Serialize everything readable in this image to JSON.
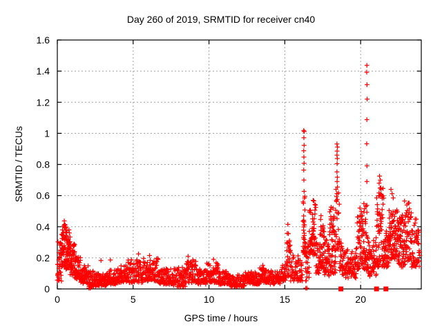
{
  "chart_data": {
    "type": "scatter",
    "title": "Day 260 of 2019, SRMTID for receiver cn40",
    "xlabel": "GPS time / hours",
    "ylabel": "SRMTID / TECUs",
    "xlim": [
      0,
      24
    ],
    "ylim": [
      0,
      1.6
    ],
    "xticks": [
      0,
      5,
      10,
      15,
      20
    ],
    "xtick_labels": [
      "0",
      "5",
      "10",
      "15",
      "20"
    ],
    "yticks": [
      0,
      0.2,
      0.4,
      0.6,
      0.8,
      1,
      1.2,
      1.4,
      1.6
    ],
    "ytick_labels": [
      "0",
      "0.2",
      "0.4",
      "0.6",
      "0.8",
      "1",
      "1.2",
      "1.4",
      "1.6"
    ],
    "grid": {
      "show": true,
      "color": "#9e9e9e",
      "dash": "2,3"
    },
    "legend": "none",
    "background": "#ffffff",
    "border_color": "#000000",
    "seed": 7,
    "series": [
      {
        "name": "srmtid-scatter",
        "marker": "plus",
        "color": "#ff0000",
        "band_segments_format": [
          "hour_start",
          "hour_end",
          "y_low",
          "y_high",
          "n_points"
        ],
        "band_segments": [
          [
            0.0,
            0.28,
            0.05,
            0.31,
            34
          ],
          [
            0.28,
            0.62,
            0.12,
            0.43,
            60
          ],
          [
            0.62,
            0.85,
            0.13,
            0.38,
            45
          ],
          [
            0.85,
            1.15,
            0.09,
            0.3,
            45
          ],
          [
            1.15,
            1.55,
            0.06,
            0.21,
            48
          ],
          [
            1.55,
            2.05,
            0.035,
            0.15,
            52
          ],
          [
            2.05,
            2.55,
            0.01,
            0.115,
            46
          ],
          [
            2.55,
            3.25,
            0.02,
            0.1,
            62
          ],
          [
            3.25,
            4.05,
            0.03,
            0.13,
            68
          ],
          [
            4.05,
            4.65,
            0.04,
            0.15,
            52
          ],
          [
            4.65,
            5.65,
            0.04,
            0.19,
            85
          ],
          [
            5.65,
            6.65,
            0.05,
            0.2,
            85
          ],
          [
            6.65,
            7.65,
            0.03,
            0.13,
            78
          ],
          [
            7.65,
            8.45,
            0.015,
            0.14,
            66
          ],
          [
            8.45,
            9.15,
            0.04,
            0.2,
            62
          ],
          [
            9.15,
            9.85,
            0.03,
            0.13,
            58
          ],
          [
            9.85,
            10.65,
            0.04,
            0.17,
            68
          ],
          [
            10.65,
            11.35,
            0.03,
            0.115,
            56
          ],
          [
            11.35,
            12.35,
            0.015,
            0.09,
            72
          ],
          [
            12.35,
            13.35,
            0.03,
            0.11,
            72
          ],
          [
            13.35,
            13.95,
            0.04,
            0.14,
            48
          ],
          [
            13.95,
            14.75,
            0.03,
            0.12,
            56
          ],
          [
            14.75,
            15.12,
            0.05,
            0.16,
            30
          ],
          [
            15.12,
            15.38,
            0.08,
            0.37,
            26
          ],
          [
            15.38,
            16.18,
            0.05,
            0.22,
            58
          ],
          [
            16.2,
            16.34,
            0.22,
            0.6,
            30
          ],
          [
            16.34,
            16.62,
            0.05,
            0.3,
            26
          ],
          [
            16.62,
            17.05,
            0.22,
            0.57,
            56
          ],
          [
            17.05,
            17.32,
            0.1,
            0.3,
            26
          ],
          [
            17.32,
            17.62,
            0.13,
            0.5,
            42
          ],
          [
            17.62,
            17.95,
            0.08,
            0.32,
            36
          ],
          [
            17.95,
            18.35,
            0.1,
            0.54,
            56
          ],
          [
            18.35,
            18.62,
            0.25,
            0.66,
            26
          ],
          [
            18.62,
            18.88,
            0.08,
            0.3,
            26
          ],
          [
            18.88,
            19.75,
            0.07,
            0.26,
            72
          ],
          [
            19.75,
            20.12,
            0.12,
            0.5,
            44
          ],
          [
            20.12,
            20.48,
            0.12,
            0.55,
            52
          ],
          [
            20.48,
            21.05,
            0.08,
            0.33,
            56
          ],
          [
            21.05,
            21.55,
            0.14,
            0.66,
            72
          ],
          [
            21.55,
            21.88,
            0.14,
            0.4,
            42
          ],
          [
            21.88,
            22.45,
            0.18,
            0.52,
            82
          ],
          [
            22.45,
            22.95,
            0.14,
            0.48,
            64
          ],
          [
            22.95,
            23.35,
            0.18,
            0.56,
            46
          ],
          [
            23.35,
            23.9,
            0.14,
            0.46,
            58
          ]
        ],
        "peak_points": [
          [
            0.46,
            0.437
          ],
          [
            0.44,
            0.408
          ],
          [
            0.49,
            0.395
          ],
          [
            2.88,
            0.183
          ],
          [
            3.5,
            0.186
          ],
          [
            5.35,
            0.225
          ],
          [
            6.08,
            0.215
          ],
          [
            8.62,
            0.21
          ],
          [
            10.3,
            0.19
          ],
          [
            13.55,
            0.152
          ],
          [
            15.2,
            0.415
          ],
          [
            15.24,
            0.355
          ],
          [
            2.08,
            0.005
          ],
          [
            2.17,
            0.005
          ],
          [
            16.38,
            0.005
          ],
          [
            16.46,
            0.005
          ],
          [
            16.25,
            1.018
          ],
          [
            16.28,
            1.012
          ],
          [
            16.26,
            0.972
          ],
          [
            16.27,
            0.923
          ],
          [
            16.25,
            0.888
          ],
          [
            16.26,
            0.848
          ],
          [
            16.27,
            0.808
          ],
          [
            16.25,
            0.764
          ],
          [
            16.26,
            0.7
          ],
          [
            16.27,
            0.627
          ],
          [
            18.44,
            0.932
          ],
          [
            18.47,
            0.912
          ],
          [
            18.45,
            0.886
          ],
          [
            18.44,
            0.86
          ],
          [
            18.46,
            0.838
          ],
          [
            18.45,
            0.805
          ],
          [
            18.44,
            0.752
          ],
          [
            18.46,
            0.718
          ],
          [
            18.45,
            0.69
          ],
          [
            18.47,
            0.655
          ],
          [
            18.44,
            0.612
          ],
          [
            18.46,
            0.575
          ],
          [
            19.95,
            0.52
          ],
          [
            20.41,
            1.437
          ],
          [
            20.4,
            1.393
          ],
          [
            20.42,
            1.313
          ],
          [
            20.43,
            1.22
          ],
          [
            20.41,
            1.088
          ],
          [
            20.4,
            0.933
          ],
          [
            20.42,
            0.791
          ],
          [
            20.41,
            0.69
          ],
          [
            21.25,
            0.725
          ],
          [
            21.3,
            0.7
          ],
          [
            21.22,
            0.68
          ],
          [
            21.28,
            0.648
          ],
          [
            22.0,
            0.64
          ],
          [
            22.08,
            0.612
          ],
          [
            22.15,
            0.585
          ],
          [
            22.9,
            0.565
          ],
          [
            23.05,
            0.54
          ]
        ]
      },
      {
        "name": "axis-flag-squares",
        "marker": "filled-square",
        "color": "#ff0000",
        "points": [
          [
            18.7,
            0
          ],
          [
            21.05,
            0
          ],
          [
            21.67,
            0
          ]
        ]
      }
    ]
  }
}
